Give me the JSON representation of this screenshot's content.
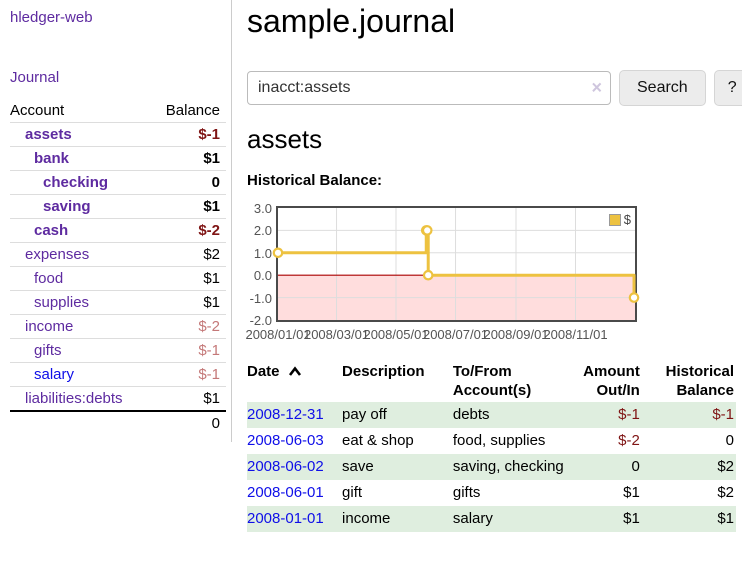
{
  "colors": {
    "link_purple": "#5e2ba0",
    "link_blue": "#0f0fe8",
    "negative_dark": "#7f1414",
    "negative_light": "#c47878",
    "row_stripe_green": "#dfeedf",
    "chart_gold": "#edc240",
    "chart_negative_pink": "#ffdddd",
    "chart_zero_red": "#aa0000"
  },
  "sidebar": {
    "brand": "hledger-web",
    "journal_link": "Journal",
    "table": {
      "account_header": "Account",
      "balance_header": "Balance",
      "rows": [
        {
          "name": "assets",
          "balance": "$-1",
          "depth": 1,
          "bold": true,
          "link": "purple",
          "balance_color": "dark-red"
        },
        {
          "name": "bank",
          "balance": "$1",
          "depth": 2,
          "bold": true,
          "link": "purple",
          "balance_color": "black"
        },
        {
          "name": "checking",
          "balance": "0",
          "depth": 3,
          "bold": true,
          "link": "purple",
          "balance_color": "black"
        },
        {
          "name": "saving",
          "balance": "$1",
          "depth": 3,
          "bold": true,
          "link": "purple",
          "balance_color": "black"
        },
        {
          "name": "cash",
          "balance": "$-2",
          "depth": 2,
          "bold": true,
          "link": "purple",
          "balance_color": "dark-red"
        },
        {
          "name": "expenses",
          "balance": "$2",
          "depth": 1,
          "bold": false,
          "link": "purple",
          "balance_color": "black"
        },
        {
          "name": "food",
          "balance": "$1",
          "depth": 2,
          "bold": false,
          "link": "purple",
          "balance_color": "black"
        },
        {
          "name": "supplies",
          "balance": "$1",
          "depth": 2,
          "bold": false,
          "link": "purple",
          "balance_color": "black"
        },
        {
          "name": "income",
          "balance": "$-2",
          "depth": 1,
          "bold": false,
          "link": "purple",
          "balance_color": "light-red"
        },
        {
          "name": "gifts",
          "balance": "$-1",
          "depth": 2,
          "bold": false,
          "link": "purple",
          "balance_color": "light-red"
        },
        {
          "name": "salary",
          "balance": "$-1",
          "depth": 2,
          "bold": false,
          "link": "blue",
          "balance_color": "light-red"
        },
        {
          "name": "liabilities:debts",
          "balance": "$1",
          "depth": 1,
          "bold": false,
          "link": "purple",
          "balance_color": "black"
        }
      ],
      "total": "0"
    }
  },
  "main": {
    "title": "sample.journal",
    "search": {
      "value": "inacct:assets",
      "clear_label": "×",
      "search_button": "Search",
      "help_button": "?"
    },
    "heading": "assets",
    "chart_title": "Historical Balance:"
  },
  "chart_data": {
    "type": "line",
    "step": true,
    "title": "Historical Balance:",
    "series": [
      {
        "name": "$",
        "color": "#edc240",
        "points": [
          [
            "2008-01-01",
            1
          ],
          [
            "2008-06-01",
            2
          ],
          [
            "2008-06-02",
            2
          ],
          [
            "2008-06-03",
            0
          ],
          [
            "2008-12-31",
            -1
          ]
        ]
      }
    ],
    "x_range": [
      "2008-01-01",
      "2009-01-01"
    ],
    "x_ticks": [
      "2008/01/01",
      "2008/03/01",
      "2008/05/01",
      "2008/07/01",
      "2008/09/01",
      "2008/11/01"
    ],
    "y_ticks": [
      3.0,
      2.0,
      1.0,
      0.0,
      -1.0,
      -2.0
    ],
    "ylim": [
      -2,
      3
    ],
    "grid": true,
    "legend_position": "top-right",
    "negative_region": true,
    "negative_region_color": "#ffdddd",
    "zero_line_color": "#aa0000"
  },
  "register": {
    "headers": {
      "date": "Date",
      "description": "Description",
      "tofrom": [
        "To/From",
        "Account(s)"
      ],
      "amount": [
        "Amount",
        "Out/In"
      ],
      "balance": [
        "Historical",
        "Balance"
      ]
    },
    "rows": [
      {
        "date": "2008-12-31",
        "description": "pay off",
        "accounts": "debts",
        "amount": "$-1",
        "amount_negative": true,
        "balance": "$-1",
        "balance_negative": true
      },
      {
        "date": "2008-06-03",
        "description": "eat & shop",
        "accounts": "food, supplies",
        "amount": "$-2",
        "amount_negative": true,
        "balance": "0",
        "balance_negative": false
      },
      {
        "date": "2008-06-02",
        "description": "save",
        "accounts": "saving, checking",
        "amount": "0",
        "amount_negative": false,
        "balance": "$2",
        "balance_negative": false
      },
      {
        "date": "2008-06-01",
        "description": "gift",
        "accounts": "gifts",
        "amount": "$1",
        "amount_negative": false,
        "balance": "$2",
        "balance_negative": false
      },
      {
        "date": "2008-01-01",
        "description": "income",
        "accounts": "salary",
        "amount": "$1",
        "amount_negative": false,
        "balance": "$1",
        "balance_negative": false
      }
    ]
  }
}
